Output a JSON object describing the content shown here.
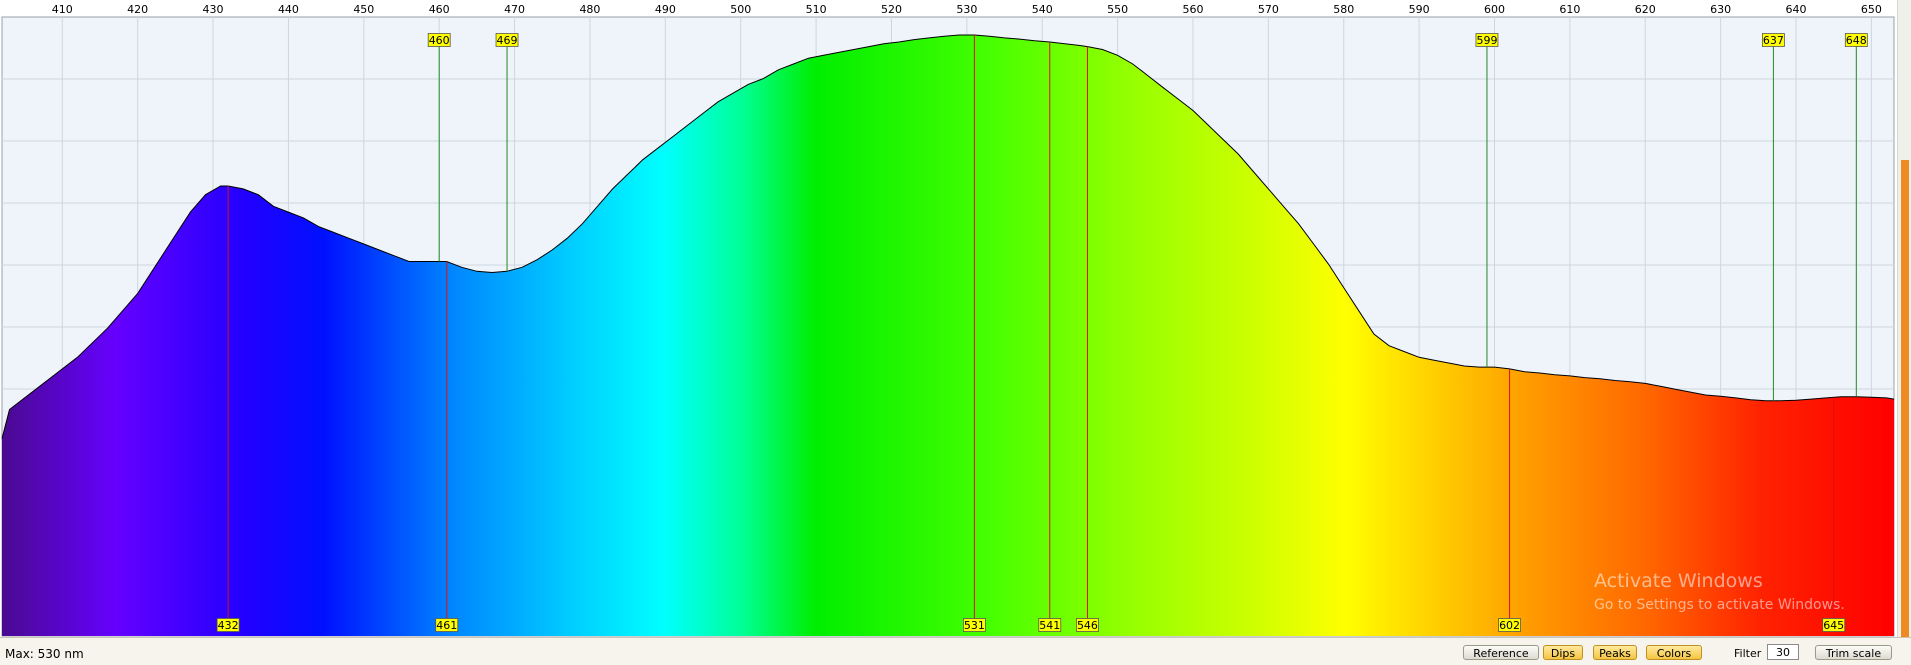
{
  "chart_data": {
    "type": "area",
    "title": "",
    "xlabel": "",
    "ylabel": "",
    "x_unit": "nm",
    "xlim": [
      402,
      653
    ],
    "ylim": [
      0,
      100
    ],
    "grid": true,
    "x_ticks": [
      410,
      420,
      430,
      440,
      450,
      460,
      470,
      480,
      490,
      500,
      510,
      520,
      530,
      540,
      550,
      560,
      570,
      580,
      590,
      600,
      610,
      620,
      630,
      640,
      650
    ],
    "series": [
      {
        "x": [
          402,
          403,
          405,
          408,
          412,
          416,
          420,
          424,
          427,
          429,
          431,
          432,
          434,
          436,
          438,
          440,
          442,
          444,
          446,
          448,
          450,
          452,
          454,
          456,
          458,
          460,
          461,
          463,
          465,
          467,
          469,
          471,
          473,
          475,
          477,
          479,
          481,
          483,
          485,
          487,
          489,
          491,
          493,
          495,
          497,
          499,
          501,
          503,
          505,
          507,
          509,
          511,
          513,
          515,
          517,
          519,
          521,
          523,
          525,
          527,
          529,
          531,
          533,
          535,
          537,
          539,
          541,
          543,
          545,
          546,
          548,
          550,
          552,
          554,
          556,
          558,
          560,
          562,
          564,
          566,
          568,
          570,
          572,
          574,
          576,
          578,
          580,
          582,
          584,
          586,
          588,
          590,
          592,
          594,
          596,
          598,
          600,
          602,
          604,
          606,
          608,
          610,
          612,
          614,
          616,
          618,
          620,
          622,
          624,
          626,
          628,
          630,
          632,
          634,
          636,
          638,
          640,
          642,
          644,
          646,
          648,
          650,
          652,
          653
        ],
        "y": [
          34,
          39,
          41,
          44,
          48,
          53,
          59,
          67,
          73,
          76,
          77.5,
          77.5,
          77,
          76,
          74,
          73,
          72,
          70.5,
          69.5,
          68.5,
          67.5,
          66.5,
          65.5,
          64.5,
          64.5,
          64.5,
          64.5,
          63.5,
          62.8,
          62.6,
          62.8,
          63.5,
          64.8,
          66.5,
          68.5,
          71,
          74,
          77,
          79.5,
          82,
          84,
          86,
          88,
          90,
          92,
          93.5,
          95,
          96,
          97.5,
          98.5,
          99.5,
          100,
          100.5,
          101,
          101.5,
          102,
          102.3,
          102.7,
          103,
          103.3,
          103.5,
          103.5,
          103.3,
          103,
          102.8,
          102.5,
          102.3,
          102,
          101.7,
          101.5,
          101,
          100,
          98.5,
          96.5,
          94.5,
          92.5,
          90.5,
          88,
          85.5,
          83,
          80,
          77,
          74,
          71,
          67.5,
          64,
          60,
          56,
          52,
          50,
          49,
          48,
          47.5,
          47,
          46.5,
          46.3,
          46.3,
          46,
          45.5,
          45.3,
          45,
          44.8,
          44.5,
          44.3,
          44,
          43.8,
          43.5,
          43,
          42.5,
          42,
          41.5,
          41.3,
          41,
          40.7,
          40.5,
          40.5,
          40.6,
          40.8,
          41,
          41.2,
          41.2,
          41.1,
          41,
          40.8
        ],
        "fill": "visible-spectrum"
      }
    ],
    "peaks": [
      432,
      461,
      531,
      541,
      546,
      602,
      645
    ],
    "dips": [
      460,
      469,
      599,
      637,
      648
    ]
  },
  "colors": {
    "plot_background": "#eef4fa",
    "grid": "#cdd6e0",
    "peak_line": "#dd1111",
    "dip_line": "#228822",
    "label_fill": "#ffff00",
    "curve": "#000000"
  },
  "status": {
    "max_text": "Max: 530 nm"
  },
  "buttons": {
    "reference": "Reference",
    "dips": "Dips",
    "peaks": "Peaks",
    "colors": "Colors",
    "trim_scale": "Trim scale"
  },
  "filter": {
    "label": "Filter",
    "value": "30"
  },
  "watermark": {
    "title": "Activate Windows",
    "subtitle": "Go to Settings to activate Windows."
  }
}
